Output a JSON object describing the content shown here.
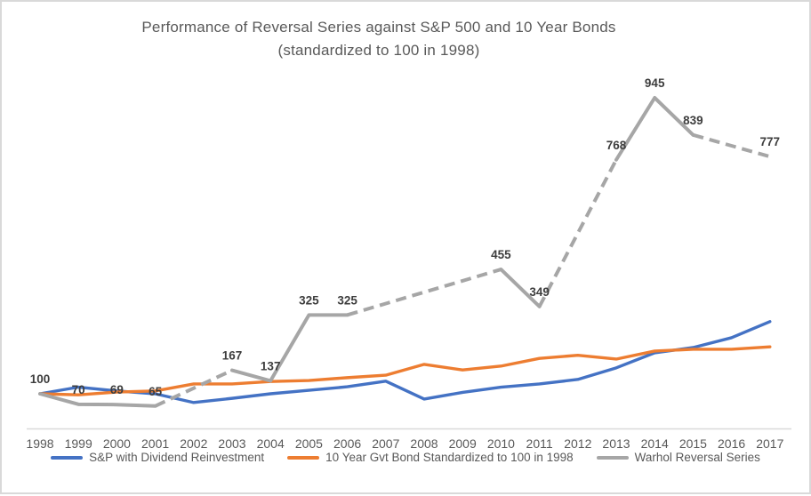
{
  "chart_data": {
    "type": "line",
    "title": "Performance of Reversal Series against S&P 500 and 10 Year Bonds",
    "subtitle": "(standardized to 100 in 1998)",
    "xlabel": "",
    "ylabel": "",
    "ylim": [
      0,
      1000
    ],
    "grid": false,
    "legend_position": "bottom",
    "x": [
      1998,
      1999,
      2000,
      2001,
      2002,
      2003,
      2004,
      2005,
      2006,
      2007,
      2008,
      2009,
      2010,
      2011,
      2012,
      2013,
      2014,
      2015,
      2016,
      2017
    ],
    "series": [
      {
        "name": "S&P with Dividend Reinvestment",
        "color": "#4472C4",
        "style": "solid",
        "values": [
          100,
          119,
          108,
          100,
          75,
          87,
          100,
          110,
          120,
          136,
          85,
          104,
          119,
          128,
          141,
          174,
          217,
          232,
          260,
          306
        ]
      },
      {
        "name": "10 Year Gvt Bond Standardized to 100 in 1998",
        "color": "#ED7D31",
        "style": "solid",
        "values": [
          100,
          97,
          105,
          108,
          128,
          128,
          135,
          138,
          146,
          153,
          184,
          168,
          179,
          201,
          210,
          199,
          222,
          227,
          227,
          234
        ]
      },
      {
        "name": "Warhol Reversal Series",
        "color": "#A6A6A6",
        "style": "solid-with-dashed-gaps",
        "points": [
          {
            "year": 1998,
            "value": 100,
            "label": "100"
          },
          {
            "year": 1999,
            "value": 70,
            "label": "70"
          },
          {
            "year": 2000,
            "value": 69,
            "label": "69"
          },
          {
            "year": 2001,
            "value": 65,
            "label": "65"
          },
          {
            "year": 2003,
            "value": 167,
            "label": "167"
          },
          {
            "year": 2004,
            "value": 137,
            "label": "137"
          },
          {
            "year": 2005,
            "value": 325,
            "label": "325"
          },
          {
            "year": 2006,
            "value": 325,
            "label": "325"
          },
          {
            "year": 2010,
            "value": 455,
            "label": "455"
          },
          {
            "year": 2011,
            "value": 349,
            "label": "349"
          },
          {
            "year": 2013,
            "value": 768,
            "label": "768"
          },
          {
            "year": 2014,
            "value": 945,
            "label": "945"
          },
          {
            "year": 2015,
            "value": 839,
            "label": "839"
          },
          {
            "year": 2017,
            "value": 777,
            "label": "777"
          }
        ],
        "segments": [
          {
            "from": 1998,
            "to": 2001,
            "dashed": false
          },
          {
            "from": 2001,
            "to": 2003,
            "dashed": true
          },
          {
            "from": 2003,
            "to": 2006,
            "dashed": false
          },
          {
            "from": 2006,
            "to": 2010,
            "dashed": true
          },
          {
            "from": 2010,
            "to": 2011,
            "dashed": false
          },
          {
            "from": 2011,
            "to": 2013,
            "dashed": true
          },
          {
            "from": 2013,
            "to": 2015,
            "dashed": false
          },
          {
            "from": 2015,
            "to": 2017,
            "dashed": true
          }
        ]
      }
    ]
  }
}
